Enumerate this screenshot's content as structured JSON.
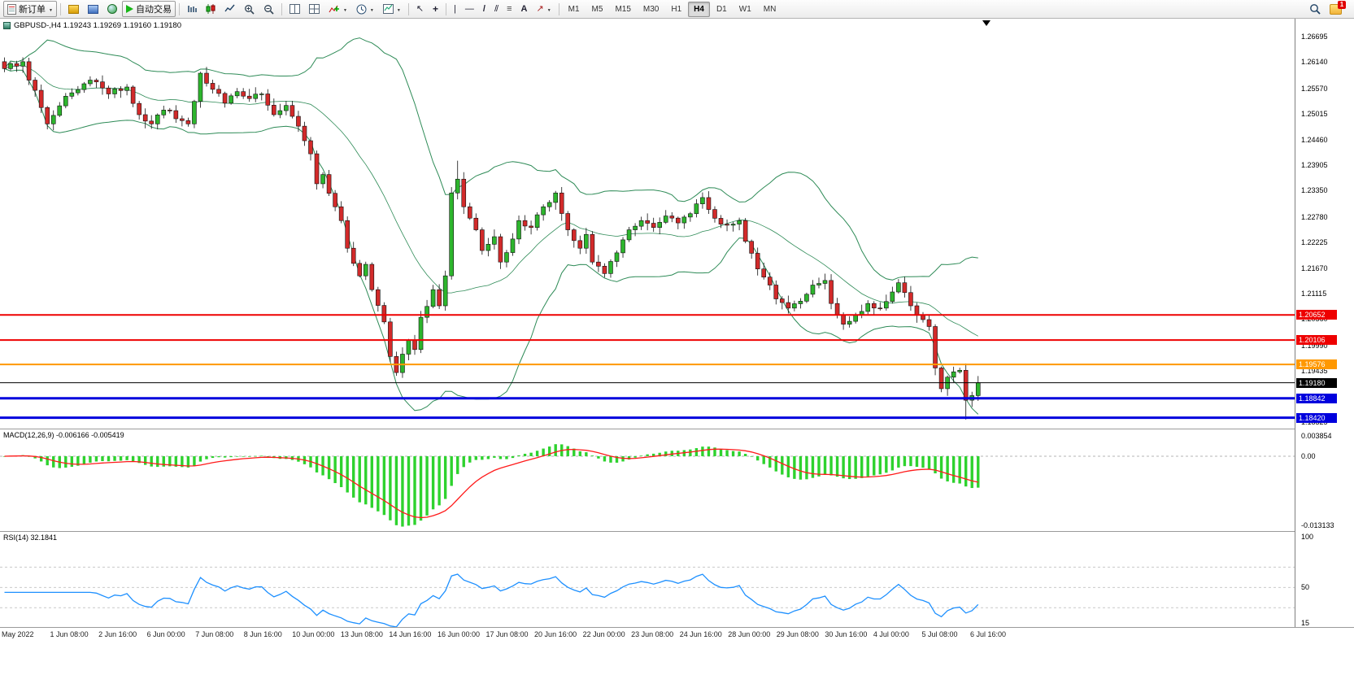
{
  "toolbar": {
    "new_order": "新订单",
    "autotrading": "自动交易",
    "timeframes": [
      "M1",
      "M5",
      "M15",
      "M30",
      "H1",
      "H4",
      "D1",
      "W1",
      "MN"
    ],
    "active_timeframe": "H4",
    "notification_count": "1"
  },
  "chart": {
    "header": "GBPUSD-,H4  1.19243 1.19269 1.19160 1.19180",
    "symbol": "GBPUSD-",
    "timeframe": "H4"
  },
  "price_axis": {
    "labels": [
      "1.26695",
      "1.26140",
      "1.25570",
      "1.25015",
      "1.24460",
      "1.23905",
      "1.23350",
      "1.22780",
      "1.22225",
      "1.21670",
      "1.21115",
      "1.20560",
      "1.19990",
      "1.19435",
      "1.18880",
      "1.18325"
    ]
  },
  "macd": {
    "label": "MACD(12,26,9)",
    "values": "-0.006166 -0.005419",
    "scale_labels": [
      "0.003854",
      "0.00",
      "-0.013133"
    ],
    "scale_values": [
      0.003854,
      0,
      -0.013133
    ]
  },
  "rsi": {
    "label": "RSI(14)",
    "value": "32.1841",
    "scale_labels": [
      "100",
      "50",
      "15"
    ],
    "scale_values": [
      100,
      50,
      15
    ],
    "levels": [
      70,
      50,
      30
    ]
  },
  "time_axis": {
    "labels": [
      "May 2022",
      "1 Jun 08:00",
      "2 Jun 16:00",
      "6 Jun 00:00",
      "7 Jun 08:00",
      "8 Jun 16:00",
      "10 Jun 00:00",
      "13 Jun 08:00",
      "14 Jun 16:00",
      "16 Jun 00:00",
      "17 Jun 08:00",
      "20 Jun 16:00",
      "22 Jun 00:00",
      "23 Jun 08:00",
      "24 Jun 16:00",
      "28 Jun 00:00",
      "29 Jun 08:00",
      "30 Jun 16:00",
      "4 Jul 00:00",
      "5 Jul 08:00",
      "6 Jul 16:00"
    ]
  },
  "chart_data": {
    "type": "candlestick",
    "title": "GBPUSD-,H4",
    "symbol": "GBPUSD",
    "timeframe": "H4",
    "last_bar": {
      "open": 1.19243,
      "high": 1.19269,
      "low": 1.1916,
      "close": 1.1918
    },
    "y_axis": {
      "max": 1.26695,
      "min": 1.18325
    },
    "bars": 160,
    "close_keyframes": [
      [
        0,
        1.26
      ],
      [
        3,
        1.2615
      ],
      [
        7,
        1.248
      ],
      [
        10,
        1.254
      ],
      [
        14,
        1.2575
      ],
      [
        17,
        1.2545
      ],
      [
        20,
        1.256
      ],
      [
        22,
        1.25
      ],
      [
        24,
        1.248
      ],
      [
        26,
        1.251
      ],
      [
        30,
        1.248
      ],
      [
        32,
        1.259
      ],
      [
        34,
        1.2555
      ],
      [
        36,
        1.2525
      ],
      [
        38,
        1.255
      ],
      [
        40,
        1.2535
      ],
      [
        42,
        1.2545
      ],
      [
        44,
        1.25
      ],
      [
        46,
        1.252
      ],
      [
        48,
        1.2475
      ],
      [
        50,
        1.2415
      ],
      [
        51,
        1.235
      ],
      [
        52,
        1.237
      ],
      [
        54,
        1.23
      ],
      [
        55,
        1.227
      ],
      [
        56,
        1.221
      ],
      [
        58,
        1.215
      ],
      [
        59,
        1.2175
      ],
      [
        60,
        1.212
      ],
      [
        62,
        1.205
      ],
      [
        63,
        1.1975
      ],
      [
        64,
        1.194
      ],
      [
        65,
        1.198
      ],
      [
        66,
        1.201
      ],
      [
        67,
        1.199
      ],
      [
        68,
        1.206
      ],
      [
        70,
        1.212
      ],
      [
        71,
        1.2085
      ],
      [
        72,
        1.215
      ],
      [
        73,
        1.233
      ],
      [
        74,
        1.236
      ],
      [
        75,
        1.23
      ],
      [
        77,
        1.225
      ],
      [
        78,
        1.2205
      ],
      [
        80,
        1.2235
      ],
      [
        81,
        1.218
      ],
      [
        83,
        1.223
      ],
      [
        84,
        1.227
      ],
      [
        86,
        1.2255
      ],
      [
        88,
        1.23
      ],
      [
        90,
        1.233
      ],
      [
        92,
        1.225
      ],
      [
        94,
        1.221
      ],
      [
        95,
        1.224
      ],
      [
        96,
        1.218
      ],
      [
        98,
        1.2155
      ],
      [
        100,
        1.22
      ],
      [
        102,
        1.225
      ],
      [
        104,
        1.227
      ],
      [
        106,
        1.2255
      ],
      [
        108,
        1.228
      ],
      [
        110,
        1.2265
      ],
      [
        112,
        1.2285
      ],
      [
        114,
        1.232
      ],
      [
        116,
        1.2275
      ],
      [
        118,
        1.226
      ],
      [
        120,
        1.227
      ],
      [
        121,
        1.2225
      ],
      [
        123,
        1.2165
      ],
      [
        125,
        1.213
      ],
      [
        126,
        1.21
      ],
      [
        128,
        1.208
      ],
      [
        130,
        1.2095
      ],
      [
        132,
        1.213
      ],
      [
        134,
        1.214
      ],
      [
        135,
        1.209
      ],
      [
        137,
        1.2045
      ],
      [
        139,
        1.2065
      ],
      [
        141,
        1.209
      ],
      [
        143,
        1.208
      ],
      [
        145,
        1.2115
      ],
      [
        146,
        1.2135
      ],
      [
        148,
        1.2085
      ],
      [
        150,
        1.2055
      ],
      [
        151,
        1.204
      ],
      [
        152,
        1.195
      ],
      [
        153,
        1.1905
      ],
      [
        154,
        1.193
      ],
      [
        156,
        1.1945
      ],
      [
        157,
        1.188
      ],
      [
        158,
        1.189
      ],
      [
        159,
        1.1918
      ]
    ],
    "low_overrides": [
      [
        64,
        1.1933
      ],
      [
        157,
        1.1838
      ]
    ],
    "high_overrides": [
      [
        74,
        1.24
      ]
    ],
    "overlays": [
      {
        "name": "Bollinger Bands",
        "period": 20,
        "deviation": 2,
        "color": "#2e8b57"
      }
    ],
    "horizontal_lines": [
      {
        "label": "1.20652",
        "price": 1.20652,
        "color": "#ee0000",
        "width": 2
      },
      {
        "label": "1.20106",
        "price": 1.20106,
        "color": "#ee0000",
        "width": 2
      },
      {
        "label": "1.19576",
        "price": 1.19576,
        "color": "#ff9800",
        "width": 2
      },
      {
        "label": "1.19180",
        "price": 1.1918,
        "color": "#000000",
        "width": 1
      },
      {
        "label": "1.18842",
        "price": 1.18842,
        "color": "#0000dd",
        "width": 3
      },
      {
        "label": "1.18420",
        "price": 1.1842,
        "color": "#0000dd",
        "width": 3
      }
    ],
    "indicators": [
      {
        "name": "MACD",
        "params": [
          12,
          26,
          9
        ],
        "current": [
          -0.006166,
          -0.005419
        ],
        "scale": {
          "max": 0.003854,
          "min": -0.013133
        }
      },
      {
        "name": "RSI",
        "params": [
          14
        ],
        "current": 32.1841,
        "scale": {
          "max": 100,
          "mid": 50,
          "min": 15
        },
        "levels": [
          70,
          50,
          30
        ]
      }
    ]
  }
}
